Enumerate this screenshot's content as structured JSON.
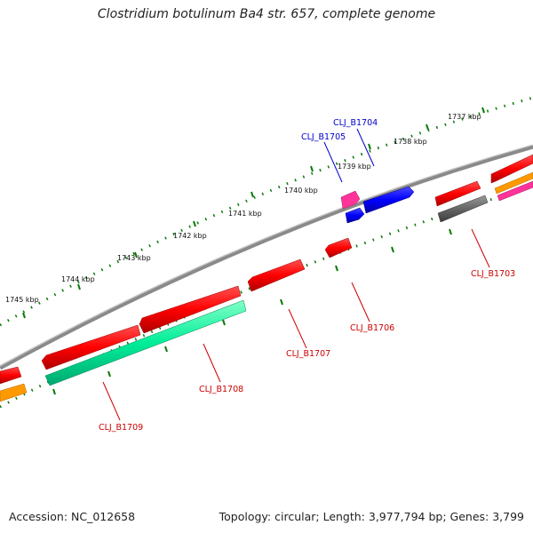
{
  "title": "Clostridium botulinum Ba4 str. 657, complete genome",
  "footer": {
    "accession": "Accession: NC_012658",
    "summary": "Topology: circular; Length: 3,977,794 bp; Genes: 3,799"
  },
  "ruler": [
    "1737 kbp",
    "1738 kbp",
    "1739 kbp",
    "1740 kbp",
    "1741 kbp",
    "1742 kbp",
    "1743 kbp",
    "1744 kbp",
    "1745 kbp"
  ],
  "genes": {
    "B1704": "CLJ_B1704",
    "B1705": "CLJ_B1705",
    "B1703": "CLJ_B1703",
    "B1706": "CLJ_B1706",
    "B1707": "CLJ_B1707",
    "B1708": "CLJ_B1708",
    "B1709": "CLJ_B1709"
  },
  "colors": {
    "forward_label": "#0000cc",
    "reverse_label": "#cc0000",
    "backbone": "#888888",
    "ticks": "#0a7a0a",
    "red": "#ff0000",
    "blue": "#0000ff",
    "pink": "#ff3399",
    "grey": "#666666",
    "teal": "#00ee99",
    "orange": "#ff9900"
  }
}
